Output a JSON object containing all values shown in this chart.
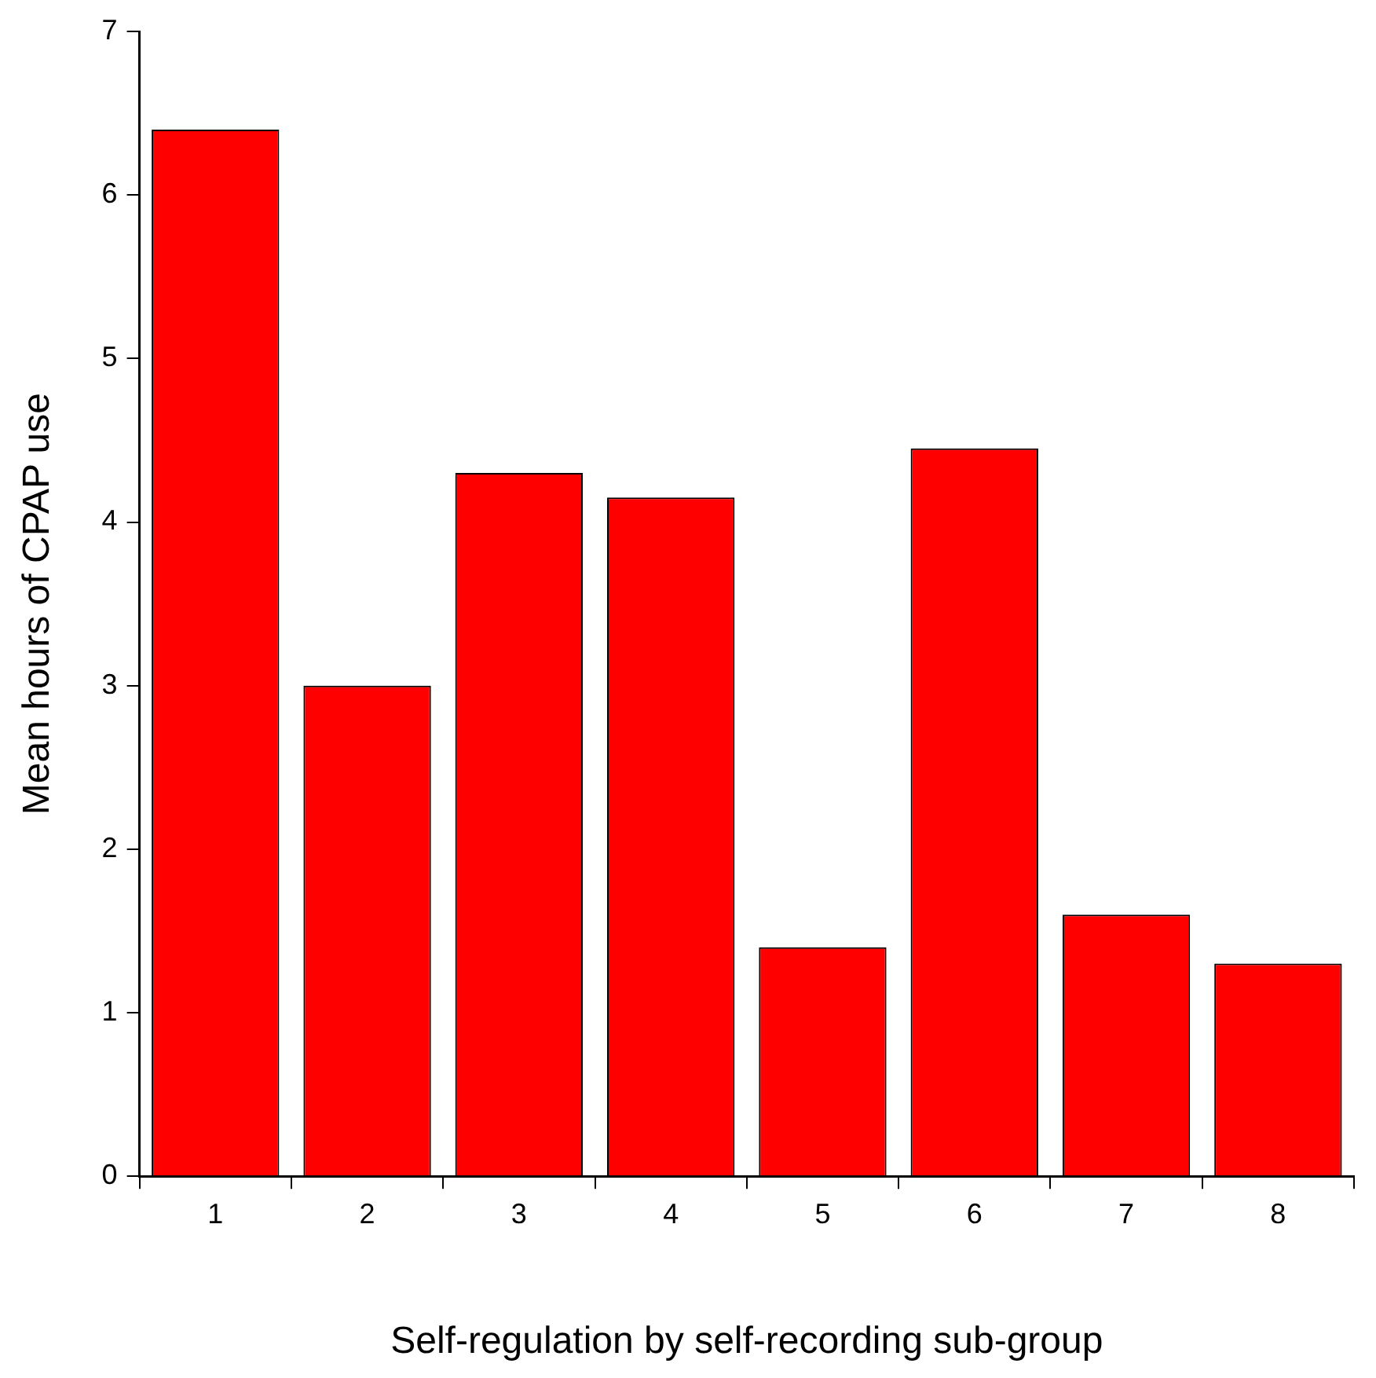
{
  "chart_data": {
    "type": "bar",
    "xlabel": "Self-regulation by self-recording sub-group",
    "ylabel": "Mean hours of CPAP use",
    "categories": [
      "1",
      "2",
      "3",
      "4",
      "5",
      "6",
      "7",
      "8"
    ],
    "values": [
      6.4,
      3.0,
      4.3,
      4.15,
      1.4,
      4.45,
      1.6,
      1.3
    ],
    "color": "#ff0000",
    "ylim": [
      0,
      7
    ],
    "yticks": [
      0,
      1,
      2,
      3,
      4,
      5,
      6,
      7
    ],
    "grid": false,
    "legend": false
  }
}
